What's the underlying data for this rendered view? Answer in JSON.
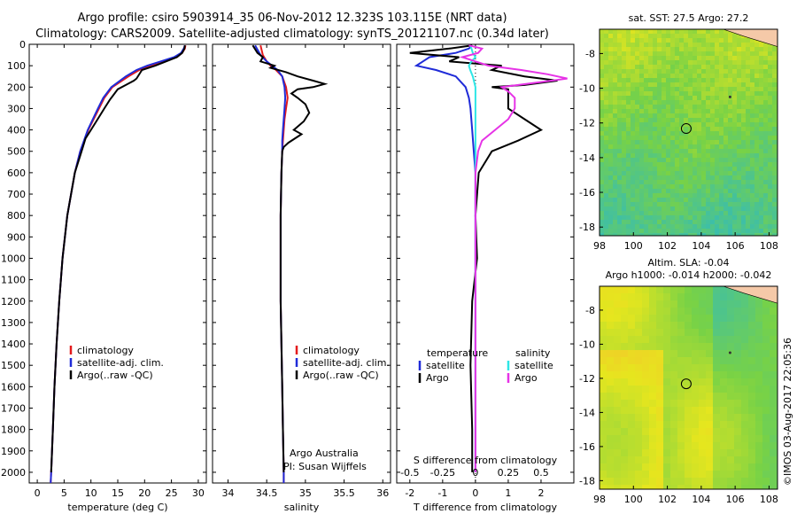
{
  "title_line1": "Argo profile: csiro 5903914_35 06-Nov-2012 12.323S 103.115E (NRT data)",
  "title_line2": "Climatology: CARS2009. Satellite-adjusted climatology: synTS_20121107.nc (0.34d later)",
  "credit": "©IMOS 03-Aug-2017 22:05:36",
  "colors": {
    "climatology": "#e41a1c",
    "satellite": "#1f2bd8",
    "argo": "#000000",
    "sal_satellite": "#2ee6e6",
    "sal_argo": "#e633e6",
    "land": "#f5c9a8"
  },
  "chart_data": [
    {
      "type": "line",
      "panel": "temperature",
      "xlabel": "temperature (deg C)",
      "ylabel": "",
      "xlim": [
        -1.5,
        31.5
      ],
      "ylim": [
        2050,
        0
      ],
      "xticks": [
        "0",
        "5",
        "10",
        "15",
        "20",
        "25",
        "30"
      ],
      "xtick_values": [
        0,
        5,
        10,
        15,
        20,
        25,
        30
      ],
      "yticks": [
        0,
        100,
        200,
        300,
        400,
        500,
        600,
        700,
        800,
        900,
        1000,
        1100,
        1200,
        1300,
        1400,
        1500,
        1600,
        1700,
        1800,
        1900,
        2000
      ],
      "legend": [
        "climatology",
        "satellite-adj. clim.",
        "Argo(..raw -QC)"
      ],
      "series": [
        {
          "name": "climatology",
          "color": "#e41a1c",
          "depth": [
            5,
            20,
            40,
            60,
            80,
            100,
            120,
            150,
            200,
            250,
            300,
            400,
            500,
            600,
            800,
            1000,
            1200,
            1400,
            1600,
            1800,
            2000,
            2050
          ],
          "values": [
            27.6,
            27.5,
            27.0,
            26.0,
            23.5,
            21.0,
            19.0,
            17.0,
            14.0,
            12.5,
            11.5,
            9.5,
            8.0,
            7.0,
            5.6,
            4.7,
            4.1,
            3.6,
            3.2,
            2.9,
            2.6,
            2.5
          ]
        },
        {
          "name": "satellite-adj. clim.",
          "color": "#1f2bd8",
          "depth": [
            5,
            20,
            40,
            60,
            80,
            100,
            120,
            150,
            200,
            250,
            300,
            400,
            500,
            600,
            800,
            1000,
            1200,
            1400,
            1600,
            1800,
            2000,
            2050
          ],
          "values": [
            27.5,
            27.3,
            26.8,
            25.5,
            23.0,
            20.5,
            18.5,
            16.5,
            13.8,
            12.3,
            11.3,
            9.4,
            8.0,
            7.0,
            5.6,
            4.7,
            4.1,
            3.6,
            3.2,
            2.9,
            2.6,
            2.5
          ]
        },
        {
          "name": "Argo(..raw -QC)",
          "color": "#000000",
          "depth": [
            5,
            20,
            40,
            60,
            80,
            100,
            120,
            160,
            170,
            190,
            210,
            260,
            300,
            360,
            400,
            440,
            480,
            520,
            600,
            800,
            1000,
            1200,
            1400,
            1600,
            1800,
            2000
          ],
          "values": [
            27.5,
            27.4,
            27.0,
            26.0,
            24.0,
            22.0,
            19.5,
            18.5,
            18.0,
            16.5,
            15.0,
            13.5,
            12.5,
            11.0,
            10.0,
            9.0,
            8.5,
            8.0,
            7.0,
            5.6,
            4.7,
            4.1,
            3.6,
            3.2,
            2.9,
            2.6
          ]
        }
      ]
    },
    {
      "type": "line",
      "panel": "salinity",
      "xlabel": "salinity",
      "ylabel": "",
      "xlim": [
        33.8,
        36.1
      ],
      "ylim": [
        2050,
        0
      ],
      "xticks": [
        "34",
        "34.5",
        "35",
        "35.5",
        "36"
      ],
      "xtick_values": [
        34,
        34.5,
        35,
        35.5,
        36
      ],
      "legend": [
        "climatology",
        "satellite-adj. clim.",
        "Argo(..raw -QC)"
      ],
      "annotation_lines": [
        "Argo Australia",
        "PI: Susan Wijffels"
      ],
      "series": [
        {
          "name": "climatology",
          "color": "#e41a1c",
          "depth": [
            5,
            50,
            80,
            100,
            120,
            150,
            200,
            250,
            300,
            350,
            400,
            450,
            500,
            600,
            800,
            1000,
            1200,
            1400,
            1600,
            1800,
            2000,
            2050
          ],
          "values": [
            34.42,
            34.45,
            34.5,
            34.55,
            34.62,
            34.7,
            34.75,
            34.77,
            34.75,
            34.73,
            34.72,
            34.71,
            34.7,
            34.69,
            34.68,
            34.68,
            34.68,
            34.69,
            34.7,
            34.71,
            34.72,
            34.72
          ]
        },
        {
          "name": "satellite-adj. clim.",
          "color": "#1f2bd8",
          "depth": [
            5,
            50,
            80,
            100,
            120,
            150,
            200,
            250,
            300,
            350,
            400,
            450,
            500,
            600,
            800,
            1000,
            1200,
            1400,
            1600,
            1800,
            2000,
            2050
          ],
          "values": [
            34.35,
            34.42,
            34.5,
            34.57,
            34.64,
            34.7,
            34.73,
            34.74,
            34.73,
            34.72,
            34.71,
            34.7,
            34.7,
            34.69,
            34.68,
            34.68,
            34.68,
            34.69,
            34.7,
            34.71,
            34.72,
            34.72
          ]
        },
        {
          "name": "Argo(..raw -QC)",
          "color": "#000000",
          "depth": [
            5,
            40,
            60,
            80,
            100,
            110,
            130,
            150,
            170,
            185,
            200,
            210,
            230,
            250,
            280,
            320,
            360,
            400,
            420,
            460,
            480,
            500,
            600,
            800,
            1000,
            1200,
            1400,
            1600,
            1800,
            2000
          ],
          "values": [
            34.32,
            34.38,
            34.45,
            34.42,
            34.6,
            34.55,
            34.75,
            34.9,
            35.1,
            35.25,
            35.1,
            34.9,
            34.82,
            34.9,
            35.0,
            35.05,
            34.98,
            34.85,
            34.95,
            34.78,
            34.72,
            34.7,
            34.69,
            34.68,
            34.68,
            34.68,
            34.69,
            34.7,
            34.71,
            34.72
          ]
        }
      ]
    },
    {
      "type": "line",
      "panel": "differences",
      "xlabel": "T difference from climatology",
      "x2label": "S difference from climatology",
      "xlim": [
        -2.4,
        3.0
      ],
      "ylim": [
        2050,
        0
      ],
      "xticks": [
        "-2",
        "-1",
        "0",
        "1",
        "2"
      ],
      "xtick_values": [
        -2,
        -1,
        0,
        1,
        2
      ],
      "x2ticks": [
        "-0.5",
        "-0.25",
        "0",
        "0.25",
        "0.5"
      ],
      "legend_headers": [
        "temperature",
        "salinity"
      ],
      "legend": [
        "satellite",
        "Argo",
        "satellite",
        "Argo"
      ],
      "series": [
        {
          "name": "satellite",
          "group": "temperature",
          "color": "#1f2bd8",
          "depth": [
            5,
            20,
            40,
            60,
            80,
            100,
            120,
            150,
            200,
            250,
            300,
            400,
            500,
            600,
            800,
            1000,
            1500,
            2000
          ],
          "values": [
            -0.1,
            -0.2,
            -0.6,
            -1.4,
            -1.6,
            -1.8,
            -1.2,
            -0.6,
            -0.3,
            -0.2,
            -0.15,
            -0.1,
            -0.05,
            0,
            0,
            0,
            0,
            0
          ]
        },
        {
          "name": "Argo",
          "group": "temperature",
          "color": "#000000",
          "depth": [
            5,
            20,
            40,
            60,
            80,
            100,
            120,
            150,
            170,
            190,
            200,
            210,
            250,
            300,
            350,
            400,
            450,
            500,
            600,
            800,
            1000,
            1200,
            1500,
            1800,
            2000
          ],
          "values": [
            -0.1,
            -0.8,
            -2.0,
            -0.5,
            -0.8,
            0.8,
            0.5,
            1.5,
            2.5,
            1.5,
            0.5,
            1.0,
            1.0,
            1.0,
            1.5,
            2.0,
            1.3,
            0.5,
            0.1,
            0,
            0.05,
            -0.1,
            -0.15,
            -0.1,
            -0.1
          ]
        },
        {
          "name": "satellite",
          "group": "salinity",
          "color": "#2ee6e6",
          "depth": [
            5,
            20,
            40,
            60,
            80,
            100,
            120,
            150,
            200,
            300,
            400,
            500,
            600,
            800,
            1000,
            1500,
            2000
          ],
          "values": [
            -0.04,
            -0.03,
            -0.02,
            0.0,
            -0.03,
            -0.05,
            -0.04,
            -0.02,
            0.0,
            0.0,
            0.0,
            0.0,
            0.0,
            0.0,
            0.0,
            0.0,
            0.0
          ]
        },
        {
          "name": "Argo",
          "group": "salinity",
          "color": "#e633e6",
          "depth": [
            5,
            20,
            40,
            60,
            80,
            100,
            120,
            140,
            160,
            180,
            200,
            220,
            250,
            300,
            350,
            400,
            450,
            500,
            600,
            800,
            1000,
            1500,
            2000
          ],
          "values": [
            -0.05,
            0.05,
            0.02,
            -0.1,
            0.0,
            0.1,
            0.35,
            0.55,
            0.7,
            0.45,
            0.2,
            0.25,
            0.3,
            0.3,
            0.25,
            0.15,
            0.05,
            0.02,
            0.0,
            0.0,
            0.0,
            0.0,
            0.0
          ]
        }
      ]
    },
    {
      "type": "heatmap",
      "panel": "sat-sst-map",
      "title": "sat. SST: 27.5 Argo: 27.2",
      "xticks": [
        "98",
        "100",
        "102",
        "104",
        "106",
        "108"
      ],
      "yticks": [
        "-8",
        "-10",
        "-12",
        "-14",
        "-16",
        "-18"
      ],
      "xlim": [
        98,
        108.5
      ],
      "ylim": [
        -18.5,
        -6.6
      ],
      "argo_position": {
        "lon": 103.115,
        "lat": -12.323
      }
    },
    {
      "type": "heatmap",
      "panel": "altimetry-map",
      "title_line1": "Altim. SLA: -0.04",
      "title_line2": "Argo h1000: -0.014 h2000: -0.042",
      "xticks": [
        "98",
        "100",
        "102",
        "104",
        "106",
        "108"
      ],
      "yticks": [
        "-8",
        "-10",
        "-12",
        "-14",
        "-16",
        "-18"
      ],
      "xlim": [
        98,
        108.5
      ],
      "ylim": [
        -18.5,
        -6.6
      ],
      "argo_position": {
        "lon": 103.115,
        "lat": -12.323
      }
    }
  ]
}
